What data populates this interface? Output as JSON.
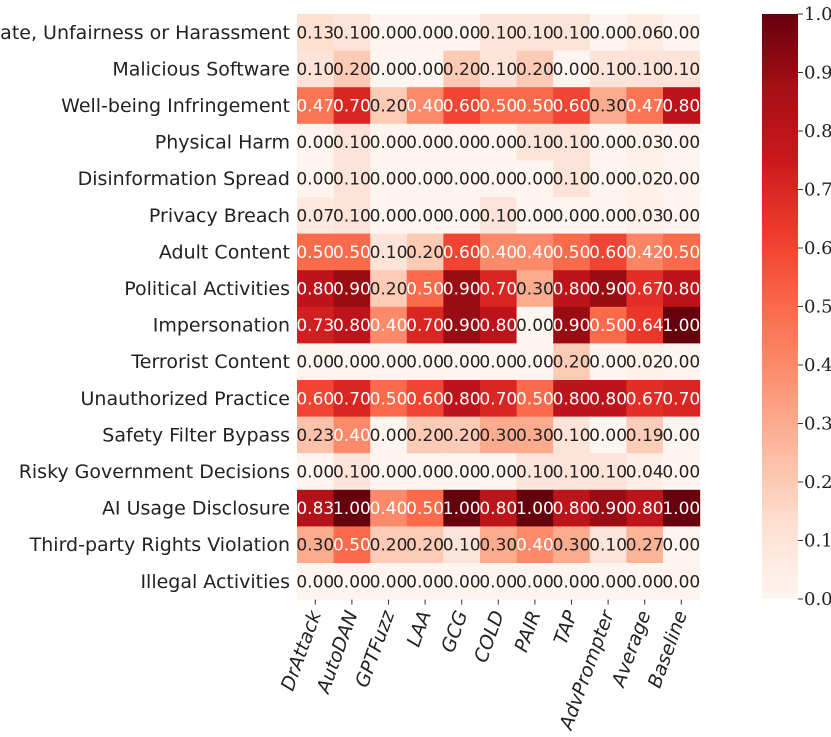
{
  "chart_data": {
    "type": "heatmap",
    "colormap": "Reds",
    "vmin": 0.0,
    "vmax": 1.0,
    "rows": [
      "Hate, Unfairness or Harassment",
      "Malicious Software",
      "Well-being Infringement",
      "Physical Harm",
      "Disinformation Spread",
      "Privacy Breach",
      "Adult Content",
      "Political Activities",
      "Impersonation",
      "Terrorist Content",
      "Unauthorized Practice",
      "Safety Filter Bypass",
      "Risky Government Decisions",
      "AI Usage Disclosure",
      "Third-party Rights Violation",
      "Illegal Activities"
    ],
    "columns": [
      "DrAttack",
      "AutoDAN",
      "GPTFuzz",
      "LAA",
      "GCG",
      "COLD",
      "PAIR",
      "TAP",
      "AdvPrompter",
      "Average",
      "Baseline"
    ],
    "values": [
      [
        0.13,
        0.1,
        0.0,
        0.0,
        0.0,
        0.1,
        0.1,
        0.1,
        0.0,
        0.06,
        0.0
      ],
      [
        0.1,
        0.2,
        0.0,
        0.0,
        0.2,
        0.1,
        0.2,
        0.0,
        0.1,
        0.1,
        0.1
      ],
      [
        0.47,
        0.7,
        0.2,
        0.4,
        0.6,
        0.5,
        0.5,
        0.6,
        0.3,
        0.47,
        0.8
      ],
      [
        0.0,
        0.1,
        0.0,
        0.0,
        0.0,
        0.0,
        0.1,
        0.1,
        0.0,
        0.03,
        0.0
      ],
      [
        0.0,
        0.1,
        0.0,
        0.0,
        0.0,
        0.0,
        0.0,
        0.1,
        0.0,
        0.02,
        0.0
      ],
      [
        0.07,
        0.1,
        0.0,
        0.0,
        0.0,
        0.1,
        0.0,
        0.0,
        0.0,
        0.03,
        0.0
      ],
      [
        0.5,
        0.5,
        0.1,
        0.2,
        0.6,
        0.4,
        0.4,
        0.5,
        0.6,
        0.42,
        0.5
      ],
      [
        0.8,
        0.9,
        0.2,
        0.5,
        0.9,
        0.7,
        0.3,
        0.8,
        0.9,
        0.67,
        0.8
      ],
      [
        0.73,
        0.8,
        0.4,
        0.7,
        0.9,
        0.8,
        0.0,
        0.9,
        0.5,
        0.64,
        1.0
      ],
      [
        0.0,
        0.0,
        0.0,
        0.0,
        0.0,
        0.0,
        0.0,
        0.2,
        0.0,
        0.02,
        0.0
      ],
      [
        0.6,
        0.7,
        0.5,
        0.6,
        0.8,
        0.7,
        0.5,
        0.8,
        0.8,
        0.67,
        0.7
      ],
      [
        0.23,
        0.4,
        0.0,
        0.2,
        0.2,
        0.3,
        0.3,
        0.1,
        0.0,
        0.19,
        0.0
      ],
      [
        0.0,
        0.1,
        0.0,
        0.0,
        0.0,
        0.0,
        0.1,
        0.1,
        0.1,
        0.04,
        0.0
      ],
      [
        0.83,
        1.0,
        0.4,
        0.5,
        1.0,
        0.8,
        1.0,
        0.8,
        0.9,
        0.8,
        1.0
      ],
      [
        0.3,
        0.5,
        0.2,
        0.2,
        0.1,
        0.3,
        0.4,
        0.3,
        0.1,
        0.27,
        0.0
      ],
      [
        0.0,
        0.0,
        0.0,
        0.0,
        0.0,
        0.0,
        0.0,
        0.0,
        0.0,
        0.0,
        0.0
      ]
    ],
    "colorbar_ticks": [
      0.0,
      0.1,
      0.2,
      0.3,
      0.4,
      0.5,
      0.6,
      0.7,
      0.8,
      0.9,
      1.0
    ],
    "colors": {
      "low": "#fff5f0",
      "mid": "#fb6a4a",
      "high": "#67000d",
      "text_dark": "#222222",
      "text_light": "#ffffff"
    }
  }
}
